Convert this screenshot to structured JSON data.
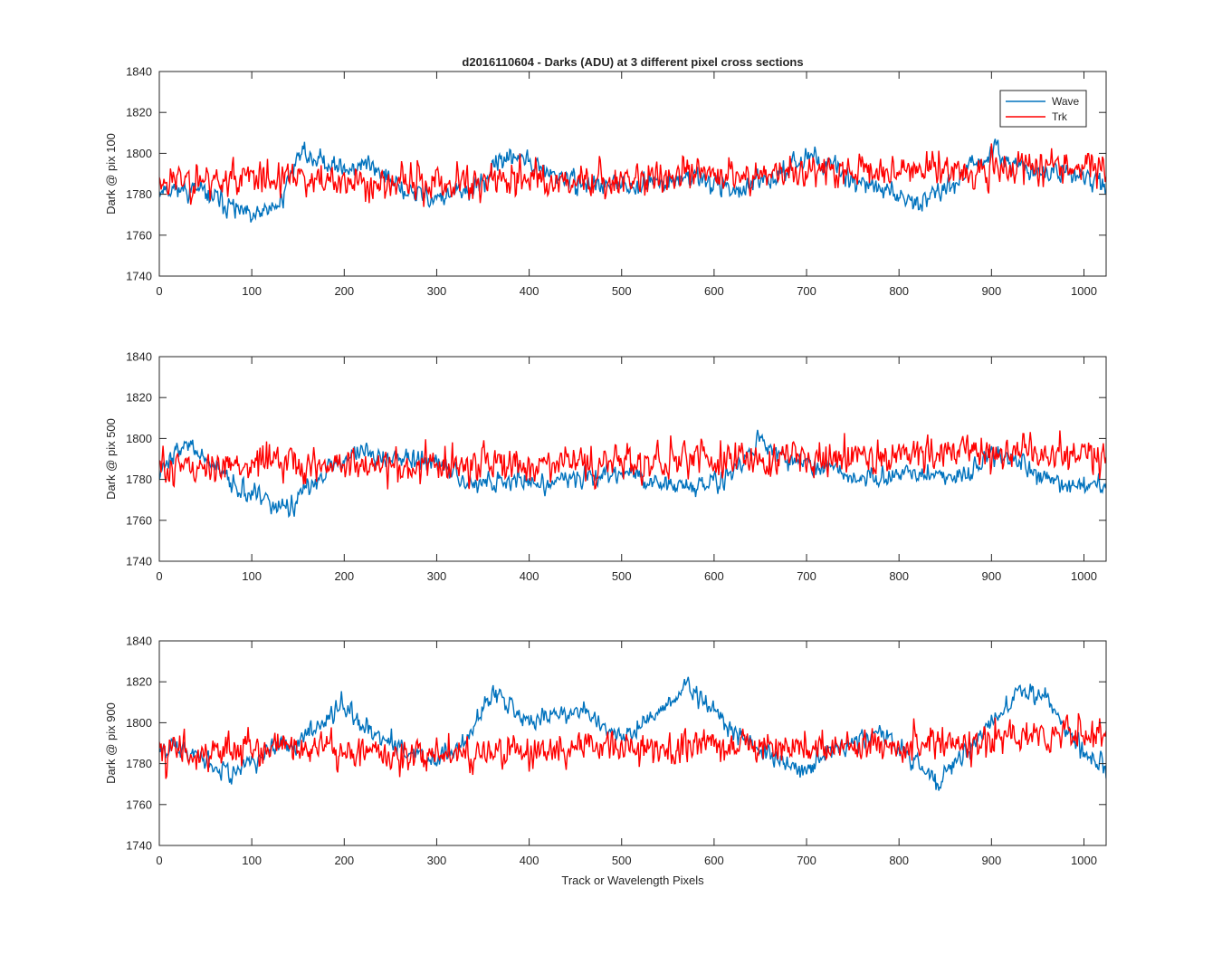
{
  "figure": {
    "title": "d2016110604 - Darks (ADU) at 3 different pixel cross sections",
    "xlabel": "Track or Wavelength Pixels"
  },
  "legend": {
    "placement": "top-right of first panel",
    "entries": [
      {
        "name": "Wave",
        "color": "#0072BD"
      },
      {
        "name": "Trk",
        "color": "#FF0000"
      }
    ]
  },
  "chart_data": [
    {
      "type": "line",
      "ylabel": "Dark @ pix 100",
      "xlim": [
        0,
        1024
      ],
      "ylim": [
        1740,
        1840
      ],
      "x_ticks": [
        0,
        100,
        200,
        300,
        400,
        500,
        600,
        700,
        800,
        900,
        1000
      ],
      "y_ticks": [
        1740,
        1760,
        1780,
        1800,
        1820,
        1840
      ],
      "grid": false,
      "noise_note": "series are approximate trend + noise reconstructions of dense 1024-point traces",
      "series": [
        {
          "name": "Wave",
          "color": "#0072BD",
          "noise": 6,
          "seed": 11,
          "trend": [
            [
              0,
              1783
            ],
            [
              40,
              1782
            ],
            [
              70,
              1776
            ],
            [
              100,
              1768
            ],
            [
              130,
              1775
            ],
            [
              150,
              1800
            ],
            [
              175,
              1797
            ],
            [
              200,
              1792
            ],
            [
              230,
              1795
            ],
            [
              260,
              1782
            ],
            [
              300,
              1778
            ],
            [
              340,
              1782
            ],
            [
              380,
              1800
            ],
            [
              420,
              1790
            ],
            [
              460,
              1785
            ],
            [
              500,
              1784
            ],
            [
              540,
              1786
            ],
            [
              580,
              1789
            ],
            [
              620,
              1782
            ],
            [
              660,
              1786
            ],
            [
              700,
              1800
            ],
            [
              740,
              1790
            ],
            [
              780,
              1782
            ],
            [
              820,
              1777
            ],
            [
              860,
              1786
            ],
            [
              900,
              1800
            ],
            [
              940,
              1792
            ],
            [
              980,
              1790
            ],
            [
              1024,
              1785
            ]
          ]
        },
        {
          "name": "Trk",
          "color": "#FF0000",
          "noise": 10,
          "seed": 23,
          "trend": [
            [
              0,
              1787
            ],
            [
              100,
              1788
            ],
            [
              200,
              1786
            ],
            [
              300,
              1785
            ],
            [
              400,
              1788
            ],
            [
              500,
              1787
            ],
            [
              600,
              1790
            ],
            [
              700,
              1791
            ],
            [
              800,
              1792
            ],
            [
              900,
              1793
            ],
            [
              1024,
              1795
            ]
          ]
        }
      ]
    },
    {
      "type": "line",
      "ylabel": "Dark @ pix 500",
      "xlim": [
        0,
        1024
      ],
      "ylim": [
        1740,
        1840
      ],
      "x_ticks": [
        0,
        100,
        200,
        300,
        400,
        500,
        600,
        700,
        800,
        900,
        1000
      ],
      "y_ticks": [
        1740,
        1760,
        1780,
        1800,
        1820,
        1840
      ],
      "grid": false,
      "series": [
        {
          "name": "Wave",
          "color": "#0072BD",
          "noise": 6,
          "seed": 37,
          "trend": [
            [
              0,
              1785
            ],
            [
              30,
              1798
            ],
            [
              60,
              1785
            ],
            [
              100,
              1772
            ],
            [
              140,
              1765
            ],
            [
              180,
              1785
            ],
            [
              220,
              1795
            ],
            [
              260,
              1790
            ],
            [
              300,
              1788
            ],
            [
              340,
              1778
            ],
            [
              380,
              1780
            ],
            [
              420,
              1778
            ],
            [
              460,
              1782
            ],
            [
              500,
              1784
            ],
            [
              540,
              1778
            ],
            [
              580,
              1776
            ],
            [
              620,
              1782
            ],
            [
              650,
              1800
            ],
            [
              680,
              1790
            ],
            [
              720,
              1785
            ],
            [
              760,
              1780
            ],
            [
              800,
              1782
            ],
            [
              840,
              1782
            ],
            [
              880,
              1782
            ],
            [
              900,
              1795
            ],
            [
              940,
              1785
            ],
            [
              980,
              1777
            ],
            [
              1024,
              1778
            ]
          ]
        },
        {
          "name": "Trk",
          "color": "#FF0000",
          "noise": 10,
          "seed": 51,
          "trend": [
            [
              0,
              1786
            ],
            [
              100,
              1787
            ],
            [
              200,
              1787
            ],
            [
              300,
              1786
            ],
            [
              400,
              1787
            ],
            [
              500,
              1788
            ],
            [
              600,
              1790
            ],
            [
              700,
              1790
            ],
            [
              800,
              1792
            ],
            [
              900,
              1793
            ],
            [
              1024,
              1792
            ]
          ]
        }
      ]
    },
    {
      "type": "line",
      "ylabel": "Dark @ pix 900",
      "xlim": [
        0,
        1024
      ],
      "ylim": [
        1740,
        1840
      ],
      "x_ticks": [
        0,
        100,
        200,
        300,
        400,
        500,
        600,
        700,
        800,
        900,
        1000
      ],
      "y_ticks": [
        1740,
        1760,
        1780,
        1800,
        1820,
        1840
      ],
      "grid": false,
      "series": [
        {
          "name": "Wave",
          "color": "#0072BD",
          "noise": 6,
          "seed": 67,
          "trend": [
            [
              0,
              1790
            ],
            [
              50,
              1782
            ],
            [
              80,
              1776
            ],
            [
              120,
              1785
            ],
            [
              160,
              1795
            ],
            [
              200,
              1810
            ],
            [
              230,
              1795
            ],
            [
              270,
              1785
            ],
            [
              300,
              1782
            ],
            [
              330,
              1790
            ],
            [
              360,
              1815
            ],
            [
              400,
              1800
            ],
            [
              430,
              1805
            ],
            [
              460,
              1805
            ],
            [
              500,
              1792
            ],
            [
              540,
              1805
            ],
            [
              570,
              1818
            ],
            [
              600,
              1805
            ],
            [
              640,
              1790
            ],
            [
              680,
              1780
            ],
            [
              700,
              1778
            ],
            [
              740,
              1790
            ],
            [
              780,
              1795
            ],
            [
              820,
              1780
            ],
            [
              840,
              1770
            ],
            [
              870,
              1785
            ],
            [
              900,
              1800
            ],
            [
              930,
              1815
            ],
            [
              960,
              1812
            ],
            [
              990,
              1790
            ],
            [
              1024,
              1777
            ]
          ]
        },
        {
          "name": "Trk",
          "color": "#FF0000",
          "noise": 10,
          "seed": 83,
          "trend": [
            [
              0,
              1786
            ],
            [
              100,
              1787
            ],
            [
              200,
              1787
            ],
            [
              300,
              1784
            ],
            [
              400,
              1787
            ],
            [
              500,
              1788
            ],
            [
              600,
              1789
            ],
            [
              700,
              1788
            ],
            [
              800,
              1789
            ],
            [
              900,
              1792
            ],
            [
              1024,
              1795
            ]
          ]
        }
      ]
    }
  ]
}
